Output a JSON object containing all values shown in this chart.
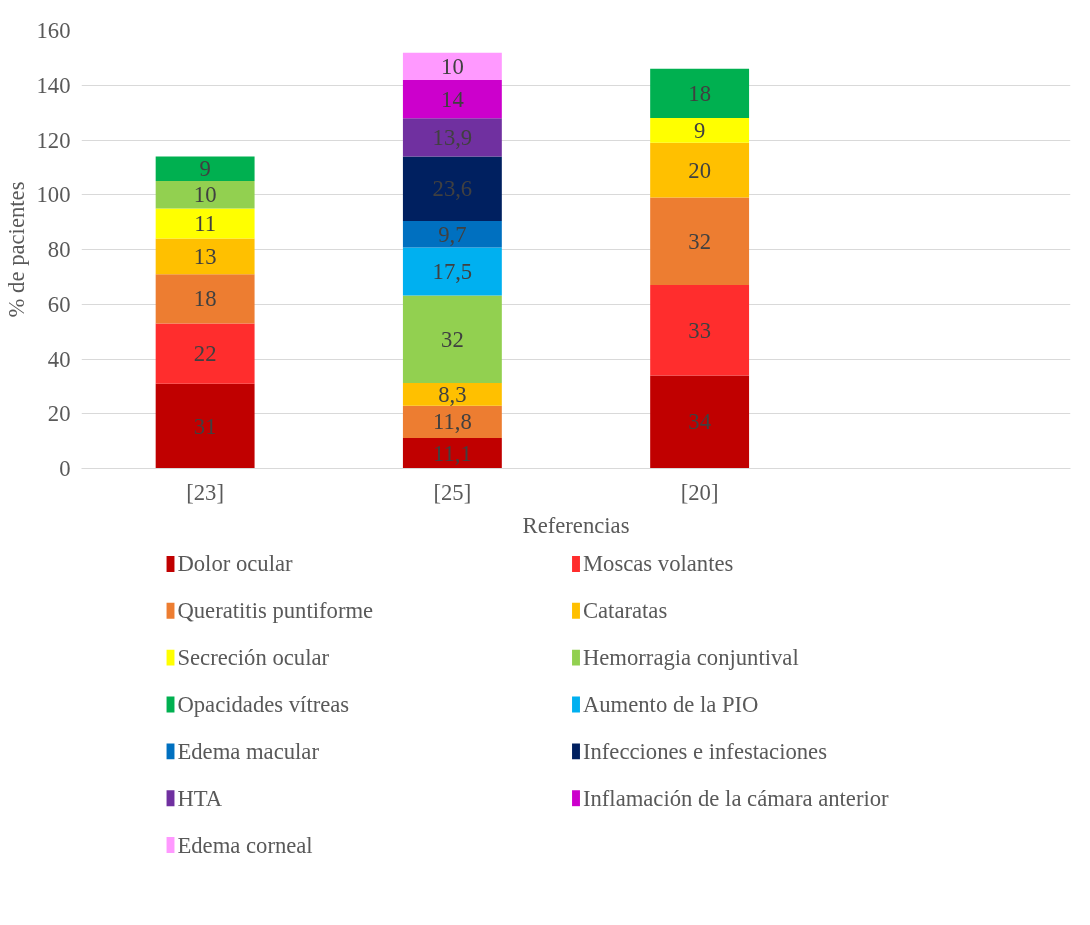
{
  "chart_data": {
    "type": "bar",
    "stacked": true,
    "xlabel": "Referencias",
    "ylabel": "% de pacientes",
    "categories": [
      "[23]",
      "[25]",
      "[20]",
      null
    ],
    "ylim": [
      0,
      160
    ],
    "yticks": [
      0,
      20,
      40,
      60,
      80,
      100,
      120,
      140,
      160
    ],
    "grid": "y",
    "legend": "bottom",
    "series": [
      {
        "name": "Dolor ocular",
        "color": "#c00000",
        "values": [
          31,
          11.1,
          34,
          null
        ],
        "value_labels": [
          "31",
          "11,1",
          "34",
          null
        ]
      },
      {
        "name": "Moscas volantes",
        "color": "#ff2d2d",
        "values": [
          22,
          null,
          33,
          null
        ],
        "value_labels": [
          "22",
          null,
          "33",
          null
        ]
      },
      {
        "name": "Queratitis puntiforme",
        "color": "#ed7d31",
        "values": [
          18,
          11.8,
          32,
          null
        ],
        "value_labels": [
          "18",
          "11,8",
          "32",
          null
        ]
      },
      {
        "name": "Cataratas",
        "color": "#ffc000",
        "values": [
          13,
          8.3,
          20,
          null
        ],
        "value_labels": [
          "13",
          "8,3",
          "20",
          null
        ]
      },
      {
        "name": "Secreción ocular",
        "color": "#ffff00",
        "values": [
          11,
          null,
          9,
          null
        ],
        "value_labels": [
          "11",
          null,
          "9",
          null
        ]
      },
      {
        "name": "Hemorragia conjuntival",
        "color": "#92d050",
        "values": [
          10,
          32,
          null,
          null
        ],
        "value_labels": [
          "10",
          "32",
          null,
          null
        ]
      },
      {
        "name": "Opacidades vítreas",
        "color": "#00b050",
        "values": [
          9,
          null,
          18,
          null
        ],
        "value_labels": [
          "9",
          null,
          "18",
          null
        ]
      },
      {
        "name": "Aumento de la PIO",
        "color": "#00b0f0",
        "values": [
          null,
          17.5,
          null,
          null
        ],
        "value_labels": [
          null,
          "17,5",
          null,
          null
        ]
      },
      {
        "name": "Edema macular",
        "color": "#0070c0",
        "values": [
          null,
          9.7,
          null,
          null
        ],
        "value_labels": [
          null,
          "9,7",
          null,
          null
        ]
      },
      {
        "name": "Infecciones e infestaciones",
        "color": "#002060",
        "values": [
          null,
          23.6,
          null,
          null
        ],
        "value_labels": [
          null,
          "23,6",
          null,
          null
        ]
      },
      {
        "name": "HTA",
        "color": "#7030a0",
        "values": [
          null,
          13.9,
          null,
          null
        ],
        "value_labels": [
          null,
          "13,9",
          null,
          null
        ]
      },
      {
        "name": "Inflamación de la cámara anterior",
        "color": "#cc00cc",
        "values": [
          null,
          14,
          null,
          null
        ],
        "value_labels": [
          null,
          "14",
          null,
          null
        ]
      },
      {
        "name": "Edema corneal",
        "color": "#ff99ff",
        "values": [
          null,
          10,
          null,
          null
        ],
        "value_labels": [
          null,
          "10",
          null,
          null
        ]
      }
    ]
  }
}
